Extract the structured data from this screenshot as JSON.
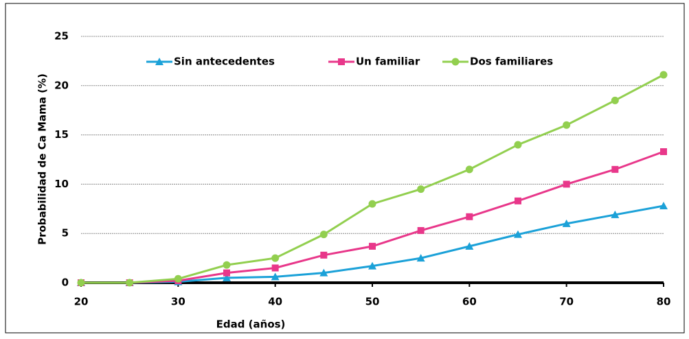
{
  "chart_data": {
    "type": "line",
    "x_label": "Edad (años)",
    "y_label": "Probabilidad de Ca Mama (%)",
    "x": [
      20,
      25,
      30,
      35,
      40,
      45,
      50,
      55,
      60,
      65,
      70,
      75,
      80
    ],
    "series": [
      {
        "name": "Sin antecedentes",
        "color": "#1ba1d8",
        "marker": "triangle",
        "values": [
          0,
          0,
          0.1,
          0.5,
          0.6,
          1.0,
          1.7,
          2.5,
          3.7,
          4.9,
          6.0,
          6.9,
          7.8
        ]
      },
      {
        "name": "Un familiar",
        "color": "#e8378a",
        "marker": "square",
        "values": [
          0,
          0,
          0.2,
          1.0,
          1.5,
          2.8,
          3.7,
          5.3,
          6.7,
          8.3,
          10.0,
          11.5,
          13.3
        ]
      },
      {
        "name": "Dos familiares",
        "color": "#92cf4f",
        "marker": "circle",
        "values": [
          0,
          0,
          0.4,
          1.8,
          2.5,
          4.9,
          8.0,
          9.5,
          11.5,
          14.0,
          16.0,
          18.5,
          21.1
        ]
      }
    ],
    "xlim": [
      20,
      80
    ],
    "xticks": [
      20,
      30,
      40,
      50,
      60,
      70,
      80
    ],
    "ylim": [
      0,
      25
    ],
    "yticks": [
      0,
      5,
      10,
      15,
      20,
      25
    ],
    "grid": true,
    "legend": "top"
  }
}
